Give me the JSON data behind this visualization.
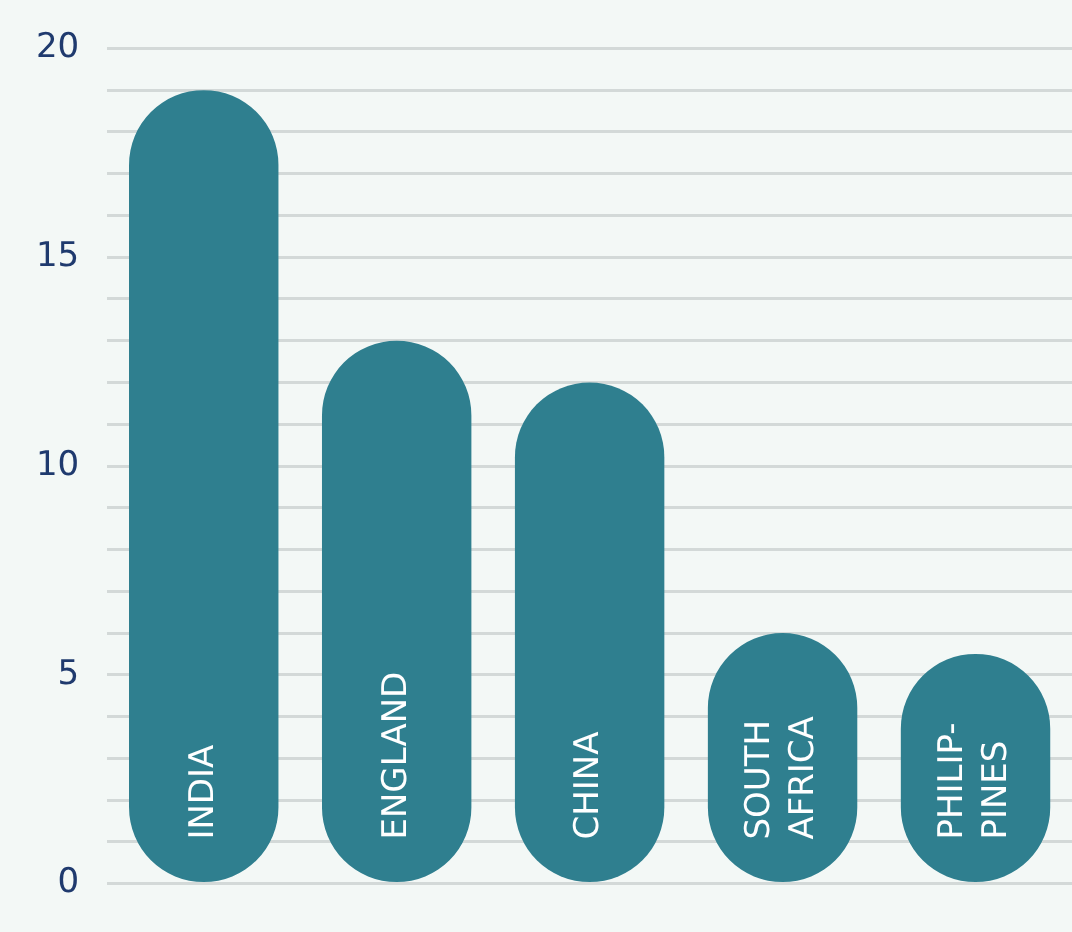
{
  "chart_data": {
    "type": "bar",
    "categories": [
      "INDIA",
      "ENGLAND",
      "CHINA",
      "SOUTH\nAFRICA",
      "PHILIP-\nPINES"
    ],
    "values": [
      19,
      13,
      12,
      6,
      5.5
    ],
    "color": "#2f7f8f",
    "ylim": [
      0,
      20
    ],
    "yticks": [
      0,
      {
        "value": 1,
        "label": null
      },
      {
        "value": 2,
        "label": null
      },
      {
        "value": 3,
        "label": null
      },
      {
        "value": 4,
        "label": null
      },
      5,
      {
        "value": 6,
        "label": null
      },
      {
        "value": 7,
        "label": null
      },
      {
        "value": 8,
        "label": null
      },
      {
        "value": 9,
        "label": null
      },
      10,
      {
        "value": 11,
        "label": null
      },
      {
        "value": 12,
        "label": null
      },
      {
        "value": 13,
        "label": null
      },
      {
        "value": 14,
        "label": null
      },
      15,
      {
        "value": 16,
        "label": null
      },
      {
        "value": 17,
        "label": null
      },
      {
        "value": 18,
        "label": null
      },
      {
        "value": 19,
        "label": null
      },
      20
    ],
    "grid": "y"
  }
}
